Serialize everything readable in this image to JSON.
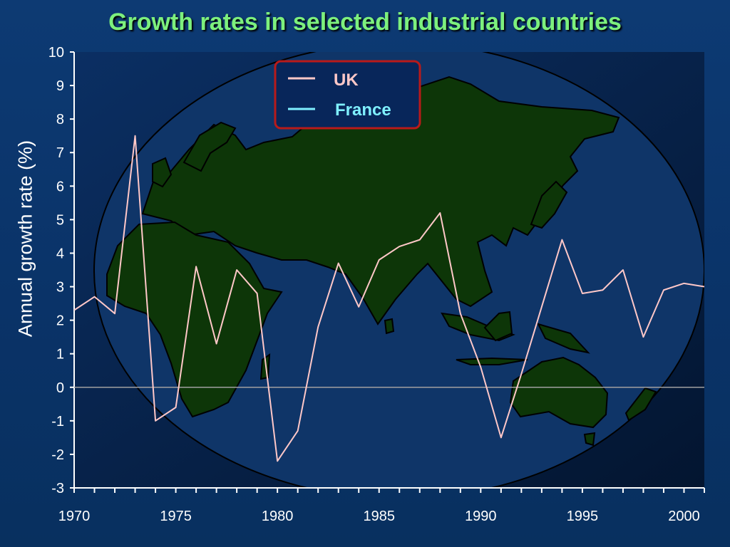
{
  "chart_data": {
    "type": "line",
    "title": "Growth rates in selected industrial countries",
    "xlabel": "",
    "ylabel": "Annual growth rate (%)",
    "xlim": [
      1970,
      2001
    ],
    "ylim": [
      -3,
      10
    ],
    "x_ticks": [
      1970,
      1975,
      1980,
      1985,
      1990,
      1995,
      2000
    ],
    "y_ticks": [
      -3,
      -2,
      -1,
      0,
      1,
      2,
      3,
      4,
      5,
      6,
      7,
      8,
      9,
      10
    ],
    "legend_position": "top-center",
    "background_image": "world-map-globe",
    "zero_line": true,
    "series": [
      {
        "name": "UK",
        "color": "#ffc8c8",
        "x": [
          1970,
          1971,
          1972,
          1973,
          1974,
          1975,
          1976,
          1977,
          1978,
          1979,
          1980,
          1981,
          1982,
          1983,
          1984,
          1985,
          1986,
          1987,
          1988,
          1989,
          1990,
          1991,
          1992,
          1993,
          1994,
          1995,
          1996,
          1997,
          1998,
          1999,
          2000,
          2001
        ],
        "values": [
          2.3,
          2.7,
          2.2,
          7.5,
          -1.0,
          -0.6,
          3.6,
          1.3,
          3.5,
          2.8,
          -2.2,
          -1.3,
          1.8,
          3.7,
          2.4,
          3.8,
          4.2,
          4.4,
          5.2,
          2.2,
          0.6,
          -1.5,
          0.4,
          2.4,
          4.4,
          2.8,
          2.9,
          3.5,
          1.5,
          2.9,
          3.1,
          3.0
        ]
      },
      {
        "name": "France",
        "color": "#7ff0ff",
        "x": [],
        "values": []
      }
    ]
  }
}
